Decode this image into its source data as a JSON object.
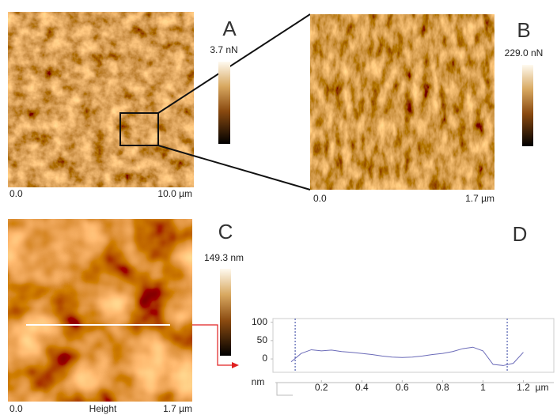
{
  "panels": [
    {
      "label": "A",
      "scale_max": "3.7 nN",
      "x_start": "0.0",
      "x_end": "10.0 µm"
    },
    {
      "label": "B",
      "scale_max": "229.0 nN",
      "x_start": "0.0",
      "x_end": "1.7 µm"
    },
    {
      "label": "C",
      "scale_max": "149.3 nm",
      "x_start": "0.0",
      "x_caption": "Height",
      "x_end": "1.7 µm"
    }
  ],
  "chart_data": {
    "type": "line",
    "label": "D",
    "y_label": "nm",
    "x_label": "µm",
    "x": [
      0.05,
      0.1,
      0.15,
      0.2,
      0.25,
      0.3,
      0.35,
      0.4,
      0.45,
      0.5,
      0.55,
      0.6,
      0.65,
      0.7,
      0.75,
      0.8,
      0.85,
      0.9,
      0.95,
      1.0,
      1.05,
      1.1,
      1.15,
      1.2
    ],
    "values": [
      -8,
      15,
      25,
      22,
      24,
      20,
      18,
      15,
      12,
      8,
      5,
      4,
      5,
      8,
      12,
      15,
      20,
      28,
      32,
      22,
      -15,
      -18,
      -12,
      18
    ],
    "color": "#6a6ab8",
    "xlim": [
      -0.04,
      1.3
    ],
    "ylim": [
      -30,
      110
    ],
    "xticks": [
      0.2,
      0.4,
      0.6,
      0.8,
      1,
      1.2
    ],
    "yticks": [
      0,
      50,
      100
    ],
    "cursors": [
      0.07,
      1.12
    ]
  }
}
